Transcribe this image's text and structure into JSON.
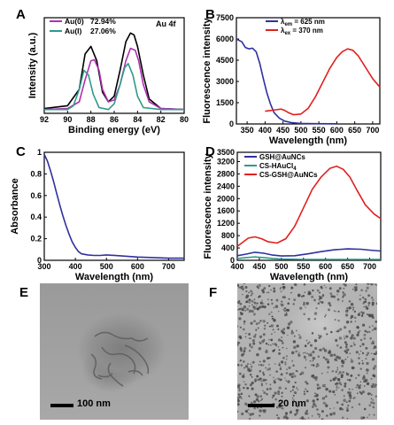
{
  "panels": {
    "A": {
      "letter": "A",
      "tag": "Au 4f",
      "xlabel": "Binding energy (eV)",
      "ylabel": "Intensity (a.u.)",
      "legend": [
        {
          "label": "Au(0)",
          "value": "72.94%",
          "color": "#b030b0"
        },
        {
          "label": "Au(I)",
          "value": "27.06%",
          "color": "#2f9a8a"
        }
      ]
    },
    "B": {
      "letter": "B",
      "xlabel": "Wavelength (nm)",
      "ylabel": "Fluorescence intensity",
      "legend": [
        {
          "label_main": "λ",
          "label_sub": "em",
          "value": " = 625 nm",
          "color": "#3030a0"
        },
        {
          "label_main": "λ",
          "label_sub": "ex",
          "value": " = 370 nm",
          "color": "#e02020"
        }
      ]
    },
    "C": {
      "letter": "C",
      "xlabel": "Wavelength (nm)",
      "ylabel": "Absorbance"
    },
    "D": {
      "letter": "D",
      "xlabel": "Wavelength (nm)",
      "ylabel": "Fluorescence intensity",
      "legend": [
        {
          "label": "GSH@AuNCs",
          "color": "#3030a0"
        },
        {
          "label_main": "CS-HAuCl",
          "label_sub": "4",
          "color": "#2f9a8a"
        },
        {
          "label": "CS-GSH@AuNCs",
          "color": "#e02020"
        }
      ]
    },
    "E": {
      "letter": "E",
      "scale": "100 nm"
    },
    "F": {
      "letter": "F",
      "scale": "20 nm"
    }
  },
  "chart_data": [
    {
      "panel": "A",
      "type": "line",
      "xlim": [
        92,
        80
      ],
      "ylim": [
        0,
        1
      ],
      "xticks": [
        92,
        90,
        88,
        86,
        84,
        82,
        80
      ],
      "y_ticks_shown": false,
      "series": [
        {
          "color": "#000000",
          "x": [
            92,
            90,
            89,
            88.5,
            88.0,
            87.5,
            87,
            86.5,
            86,
            85.5,
            85,
            84.6,
            84.3,
            84,
            83.5,
            83,
            82,
            80
          ],
          "y": [
            0.05,
            0.08,
            0.25,
            0.62,
            0.7,
            0.55,
            0.22,
            0.12,
            0.18,
            0.45,
            0.75,
            0.84,
            0.82,
            0.7,
            0.4,
            0.15,
            0.05,
            0.04
          ]
        },
        {
          "color": "#b030b0",
          "x": [
            92,
            90,
            89,
            88.5,
            88.0,
            87.7,
            87.3,
            87,
            86.5,
            86,
            85.5,
            85,
            84.6,
            84.2,
            83.9,
            83.5,
            83,
            82,
            80
          ],
          "y": [
            0.04,
            0.05,
            0.12,
            0.35,
            0.55,
            0.56,
            0.45,
            0.25,
            0.12,
            0.14,
            0.3,
            0.55,
            0.68,
            0.66,
            0.55,
            0.3,
            0.12,
            0.05,
            0.04
          ]
        },
        {
          "color": "#2f9a8a",
          "x": [
            92,
            90,
            89.5,
            89,
            88.6,
            88.2,
            87.8,
            87.3,
            86.5,
            86,
            85.5,
            85.1,
            84.8,
            84.4,
            84,
            83.5,
            82,
            80
          ],
          "y": [
            0.04,
            0.04,
            0.08,
            0.25,
            0.45,
            0.4,
            0.2,
            0.06,
            0.04,
            0.1,
            0.3,
            0.48,
            0.52,
            0.4,
            0.18,
            0.06,
            0.04,
            0.04
          ]
        }
      ]
    },
    {
      "panel": "B",
      "type": "line",
      "xlim": [
        320,
        720
      ],
      "ylim": [
        0,
        7500
      ],
      "xticks": [
        350,
        400,
        450,
        500,
        550,
        600,
        650,
        700
      ],
      "yticks": [
        0,
        1500,
        3000,
        4500,
        6000,
        7500
      ],
      "series": [
        {
          "name": "λem = 625 nm",
          "color": "#3030a0",
          "x": [
            320,
            335,
            345,
            355,
            365,
            375,
            385,
            395,
            405,
            415,
            425,
            440,
            455,
            475,
            500,
            540,
            600
          ],
          "y": [
            6000,
            5800,
            5400,
            5300,
            5350,
            5100,
            4300,
            3200,
            2200,
            1400,
            800,
            400,
            200,
            90,
            40,
            20,
            10
          ]
        },
        {
          "name": "λex = 370 nm",
          "color": "#e02020",
          "x": [
            400,
            415,
            430,
            445,
            455,
            465,
            480,
            500,
            520,
            540,
            560,
            580,
            600,
            615,
            630,
            645,
            660,
            680,
            700,
            720
          ],
          "y": [
            900,
            950,
            1000,
            1050,
            950,
            800,
            650,
            700,
            1100,
            1900,
            2900,
            3900,
            4700,
            5100,
            5300,
            5200,
            4800,
            4000,
            3200,
            2600
          ]
        }
      ]
    },
    {
      "panel": "C",
      "type": "line",
      "xlim": [
        300,
        750
      ],
      "ylim": [
        0,
        1.0
      ],
      "xticks": [
        300,
        400,
        500,
        600,
        700
      ],
      "yticks": [
        0.0,
        0.2,
        0.4,
        0.6,
        0.8,
        1.0
      ],
      "series": [
        {
          "color": "#3030a0",
          "x": [
            300,
            310,
            320,
            330,
            340,
            350,
            360,
            370,
            380,
            390,
            400,
            410,
            420,
            440,
            460,
            480,
            500,
            550,
            600,
            650,
            700,
            750
          ],
          "y": [
            0.98,
            0.92,
            0.83,
            0.73,
            0.62,
            0.51,
            0.41,
            0.32,
            0.24,
            0.17,
            0.12,
            0.08,
            0.06,
            0.05,
            0.045,
            0.045,
            0.05,
            0.04,
            0.03,
            0.025,
            0.02,
            0.02
          ]
        }
      ]
    },
    {
      "panel": "D",
      "type": "line",
      "xlim": [
        400,
        725
      ],
      "ylim": [
        0,
        3500
      ],
      "xticks": [
        400,
        450,
        500,
        550,
        600,
        650,
        700
      ],
      "yticks": [
        0,
        400,
        800,
        1200,
        1600,
        2000,
        2400,
        2800,
        3200,
        3500
      ],
      "series": [
        {
          "name": "GSH@AuNCs",
          "color": "#3030a0",
          "x": [
            400,
            420,
            440,
            460,
            480,
            500,
            530,
            560,
            590,
            620,
            650,
            680,
            700,
            725
          ],
          "y": [
            150,
            200,
            260,
            230,
            170,
            140,
            150,
            210,
            280,
            340,
            370,
            360,
            330,
            300
          ]
        },
        {
          "name": "CS-HAuCl4",
          "color": "#2f9a8a",
          "x": [
            400,
            420,
            440,
            460,
            480,
            500,
            550,
            600,
            650,
            700,
            725
          ],
          "y": [
            60,
            90,
            110,
            90,
            60,
            40,
            30,
            30,
            30,
            30,
            30
          ]
        },
        {
          "name": "CS-GSH@AuNCs",
          "color": "#e02020",
          "x": [
            400,
            410,
            425,
            440,
            455,
            470,
            490,
            510,
            530,
            550,
            570,
            590,
            610,
            625,
            640,
            655,
            670,
            690,
            710,
            725
          ],
          "y": [
            450,
            560,
            720,
            760,
            700,
            600,
            560,
            700,
            1100,
            1700,
            2300,
            2700,
            2980,
            3050,
            2950,
            2700,
            2300,
            1800,
            1500,
            1350
          ]
        }
      ]
    }
  ]
}
